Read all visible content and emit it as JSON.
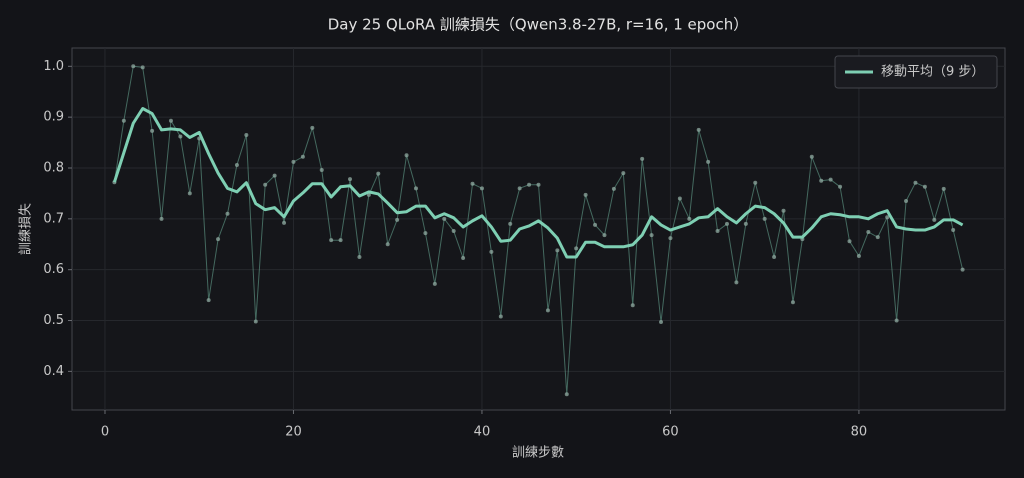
{
  "chart_data": {
    "type": "line",
    "title": "Day 25  QLoRA 訓練損失（Qwen3.8-27B, r=16, 1 epoch）",
    "x_label": "訓練步數",
    "y_label": "訓練損失",
    "x": [
      1,
      2,
      3,
      4,
      5,
      6,
      7,
      8,
      9,
      10,
      11,
      12,
      13,
      14,
      15,
      16,
      17,
      18,
      19,
      20,
      21,
      22,
      23,
      24,
      25,
      26,
      27,
      28,
      29,
      30,
      31,
      32,
      33,
      34,
      35,
      36,
      37,
      38,
      39,
      40,
      41,
      42,
      43,
      44,
      45,
      46,
      47,
      48,
      49,
      50,
      51,
      52,
      53,
      54,
      55,
      56,
      57,
      58,
      59,
      60,
      61,
      62,
      63,
      64,
      65,
      66,
      67,
      68,
      69,
      70,
      71,
      72,
      73,
      74,
      75,
      76,
      77,
      78,
      79,
      80,
      81,
      82,
      83,
      84,
      85,
      86,
      87,
      88,
      89,
      90,
      91
    ],
    "series": [
      {
        "color": "#7ecfb3",
        "markers": true,
        "values": [
          0.772,
          0.893,
          1.0,
          0.998,
          0.873,
          0.7,
          0.893,
          0.862,
          0.75,
          0.858,
          0.54,
          0.66,
          0.71,
          0.806,
          0.865,
          0.498,
          0.767,
          0.785,
          0.692,
          0.812,
          0.822,
          0.879,
          0.796,
          0.658,
          0.658,
          0.778,
          0.625,
          0.747,
          0.789,
          0.65,
          0.698,
          0.825,
          0.76,
          0.672,
          0.572,
          0.7,
          0.676,
          0.623,
          0.769,
          0.76,
          0.635,
          0.508,
          0.69,
          0.76,
          0.767,
          0.767,
          0.52,
          0.638,
          0.355,
          0.642,
          0.747,
          0.688,
          0.668,
          0.759,
          0.79,
          0.53,
          0.818,
          0.668,
          0.497,
          0.662,
          0.74,
          0.7,
          0.875,
          0.812,
          0.676,
          0.69,
          0.575,
          0.69,
          0.771,
          0.7,
          0.625,
          0.716,
          0.536,
          0.66,
          0.822,
          0.775,
          0.777,
          0.763,
          0.656,
          0.627,
          0.674,
          0.664,
          0.703,
          0.5,
          0.735,
          0.771,
          0.763,
          0.698,
          0.759,
          0.678,
          0.6
        ]
      },
      {
        "name": "移動平均（9 步）",
        "color": "#7ecfb3",
        "markers": false,
        "values": [
          0.772,
          0.83,
          0.888,
          0.917,
          0.907,
          0.875,
          0.877,
          0.875,
          0.86,
          0.87,
          0.828,
          0.79,
          0.76,
          0.753,
          0.771,
          0.73,
          0.718,
          0.722,
          0.704,
          0.735,
          0.751,
          0.769,
          0.769,
          0.743,
          0.763,
          0.765,
          0.745,
          0.753,
          0.749,
          0.731,
          0.712,
          0.714,
          0.725,
          0.725,
          0.702,
          0.71,
          0.702,
          0.684,
          0.696,
          0.706,
          0.684,
          0.656,
          0.658,
          0.68,
          0.686,
          0.696,
          0.682,
          0.662,
          0.625,
          0.625,
          0.654,
          0.654,
          0.645,
          0.645,
          0.645,
          0.649,
          0.668,
          0.704,
          0.688,
          0.678,
          0.684,
          0.69,
          0.702,
          0.704,
          0.72,
          0.704,
          0.692,
          0.71,
          0.725,
          0.722,
          0.71,
          0.692,
          0.664,
          0.664,
          0.682,
          0.704,
          0.71,
          0.708,
          0.704,
          0.704,
          0.7,
          0.71,
          0.716,
          0.684,
          0.68,
          0.678,
          0.678,
          0.684,
          0.698,
          0.698,
          0.688
        ]
      }
    ],
    "xlim": [
      -3.5,
      95.5
    ],
    "ylim": [
      0.324,
      1.036
    ],
    "xticks": [
      0,
      20,
      40,
      60,
      80
    ],
    "yticks": [
      0.4,
      0.5,
      0.6,
      0.7,
      0.8,
      0.9,
      {
        "value": 1,
        "label": "1.0"
      }
    ],
    "grid": true,
    "legend": "upper right"
  }
}
